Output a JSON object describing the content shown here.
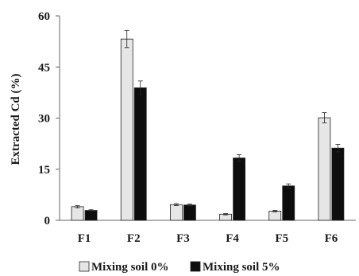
{
  "chart_data": {
    "type": "bar",
    "title": "",
    "xlabel": "",
    "ylabel": "Extracted Cd (%)",
    "ylim": [
      0,
      60
    ],
    "yticks": [
      0,
      15,
      30,
      45,
      60
    ],
    "grid": false,
    "legend_position": "bottom",
    "categories": [
      "F1",
      "F2",
      "F3",
      "F4",
      "F5",
      "F6"
    ],
    "series": [
      {
        "name": "Mixing soil 0%",
        "color": "#e6e6e6",
        "values": [
          4.0,
          53.2,
          4.6,
          1.8,
          2.7,
          30.1
        ],
        "errors": [
          0.3,
          2.5,
          0.3,
          0.2,
          0.2,
          1.5
        ]
      },
      {
        "name": "Mixing soil 5%",
        "color": "#0d0d0d",
        "values": [
          2.9,
          38.9,
          4.5,
          18.3,
          10.1,
          21.2
        ],
        "errors": [
          0.2,
          2.0,
          0.3,
          1.0,
          0.6,
          1.1
        ]
      }
    ]
  }
}
